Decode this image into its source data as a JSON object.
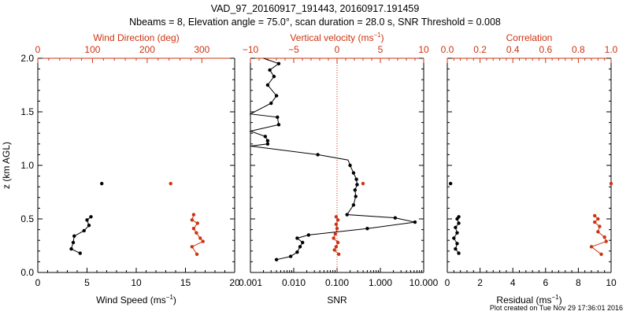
{
  "title_line1": "VAD_97_20160917_191443, 20160917.191459",
  "title_line2": "Nbeams = 8, Elevation angle = 75.0°, scan duration = 28.0 s, SNR Threshold = 0.008",
  "footer": "Plot created on Tue Nov 29 17:36:01 2016",
  "colors": {
    "primary": "#000000",
    "secondary": "#cc3311"
  },
  "chart_data": [
    {
      "type": "line",
      "ylabel": "z (km AGL)",
      "ylim": [
        0,
        2
      ],
      "ytick_labels": [
        "0.0",
        "0.5",
        "1.0",
        "1.5",
        "2.0"
      ],
      "xlabel_bottom": "Wind Speed (ms",
      "xlabel_bottom_unit_sup": "−1",
      "xlabel_bottom_close": ")",
      "xlim_bottom": [
        0,
        20
      ],
      "xticks_bottom": [
        "0",
        "5",
        "10",
        "15",
        "20"
      ],
      "xlabel_top": "Wind Direction (deg)",
      "xlim_top": [
        0,
        360
      ],
      "xticks_top": [
        "0",
        "100",
        "200",
        "300"
      ],
      "series": [
        {
          "axis": "bottom",
          "color": "#000000",
          "points": [
            [
              4.3,
              0.18
            ],
            [
              3.4,
              0.22
            ],
            [
              3.6,
              0.28
            ],
            [
              3.7,
              0.34
            ],
            [
              4.7,
              0.39
            ],
            [
              5.2,
              0.44
            ],
            [
              5.0,
              0.49
            ],
            [
              5.4,
              0.52
            ]
          ],
          "isolated": [
            [
              6.5,
              0.83
            ]
          ]
        },
        {
          "axis": "top",
          "color": "#cc3311",
          "points": [
            [
              291,
              0.17
            ],
            [
              282,
              0.24
            ],
            [
              302,
              0.29
            ],
            [
              297,
              0.32
            ],
            [
              290,
              0.37
            ],
            [
              285,
              0.41
            ],
            [
              292,
              0.46
            ],
            [
              282,
              0.49
            ],
            [
              285,
              0.54
            ]
          ],
          "isolated": [
            [
              243,
              0.83
            ]
          ]
        }
      ]
    },
    {
      "type": "line",
      "xlabel_bottom": "SNR",
      "xscale_bottom": "log",
      "xlim_bottom": [
        0.001,
        10
      ],
      "xticks_bottom": [
        "0.001",
        "0.010",
        "0.100",
        "1.000",
        "10.000"
      ],
      "xlabel_top": "Vertical velocity (ms",
      "xlabel_top_unit_sup": "−1",
      "xlabel_top_close": ")",
      "xlim_top": [
        -10,
        10
      ],
      "xticks_top": [
        "−10",
        "−5",
        "0",
        "5",
        "10"
      ],
      "reference_line_top": 0,
      "series": [
        {
          "axis": "bottom",
          "color": "#000000",
          "points": [
            [
              0.004,
              0.12
            ],
            [
              0.0085,
              0.15
            ],
            [
              0.012,
              0.19
            ],
            [
              0.014,
              0.24
            ],
            [
              0.016,
              0.28
            ],
            [
              0.012,
              0.32
            ],
            [
              0.022,
              0.35
            ],
            [
              0.5,
              0.41
            ],
            [
              6.3,
              0.47
            ],
            [
              2.2,
              0.51
            ],
            [
              0.17,
              0.54
            ],
            [
              0.24,
              0.63
            ],
            [
              0.27,
              0.71
            ],
            [
              0.26,
              0.77
            ],
            [
              0.29,
              0.82
            ],
            [
              0.28,
              0.87
            ],
            [
              0.24,
              0.93
            ],
            [
              0.2,
              1.0
            ],
            [
              0.18,
              1.05
            ],
            [
              0.036,
              1.1
            ],
            [
              0.001,
              1.18
            ],
            [
              0.0025,
              1.2
            ],
            [
              0.0025,
              1.23
            ],
            [
              0.0022,
              1.27
            ],
            [
              0.001,
              1.32
            ],
            [
              0.0045,
              1.38
            ],
            [
              0.0042,
              1.45
            ],
            [
              0.001,
              1.48
            ],
            [
              0.003,
              1.58
            ],
            [
              0.004,
              1.65
            ],
            [
              0.0025,
              1.75
            ],
            [
              0.0035,
              1.83
            ],
            [
              0.0028,
              1.89
            ],
            [
              0.0045,
              1.95
            ],
            [
              0.002,
              2.0
            ]
          ],
          "marker_indices": [
            0,
            1,
            2,
            3,
            4,
            5,
            6,
            7,
            8,
            9,
            10,
            11,
            12,
            13,
            14,
            15,
            16,
            17,
            19,
            21,
            22,
            23,
            25,
            26,
            28,
            29,
            30,
            31,
            32,
            33
          ]
        },
        {
          "axis": "top",
          "color": "#cc3311",
          "points": [
            [
              0.2,
              0.17
            ],
            [
              -0.3,
              0.21
            ],
            [
              -0.1,
              0.24
            ],
            [
              0.1,
              0.28
            ],
            [
              -0.4,
              0.32
            ],
            [
              -0.2,
              0.36
            ],
            [
              0.0,
              0.41
            ],
            [
              -0.1,
              0.45
            ],
            [
              0.1,
              0.49
            ],
            [
              -0.1,
              0.52
            ]
          ],
          "isolated": [
            [
              3.0,
              0.83
            ]
          ]
        }
      ]
    },
    {
      "type": "line",
      "xlabel_bottom": "Residual (ms",
      "xlabel_bottom_unit_sup": "−1",
      "xlabel_bottom_close": ")",
      "xlim_bottom": [
        0,
        10
      ],
      "xticks_bottom": [
        "0",
        "2",
        "4",
        "6",
        "8",
        "10"
      ],
      "xlabel_top": "Correlation",
      "xlim_top": [
        0,
        1
      ],
      "xticks_top": [
        "0.0",
        "0.2",
        "0.4",
        "0.6",
        "0.8",
        "1.0"
      ],
      "series": [
        {
          "axis": "bottom",
          "color": "#000000",
          "points": [
            [
              0.7,
              0.18
            ],
            [
              0.5,
              0.22
            ],
            [
              0.6,
              0.27
            ],
            [
              0.4,
              0.32
            ],
            [
              0.6,
              0.37
            ],
            [
              0.5,
              0.42
            ],
            [
              0.7,
              0.46
            ],
            [
              0.6,
              0.5
            ],
            [
              0.7,
              0.52
            ]
          ],
          "isolated": [
            [
              0.2,
              0.83
            ]
          ]
        },
        {
          "axis": "top",
          "color": "#cc3311",
          "points": [
            [
              0.94,
              0.17
            ],
            [
              0.88,
              0.24
            ],
            [
              0.97,
              0.29
            ],
            [
              0.96,
              0.33
            ],
            [
              0.92,
              0.38
            ],
            [
              0.93,
              0.43
            ],
            [
              0.9,
              0.47
            ],
            [
              0.92,
              0.5
            ],
            [
              0.9,
              0.53
            ]
          ],
          "isolated": [
            [
              1.0,
              0.83
            ]
          ]
        }
      ]
    }
  ]
}
